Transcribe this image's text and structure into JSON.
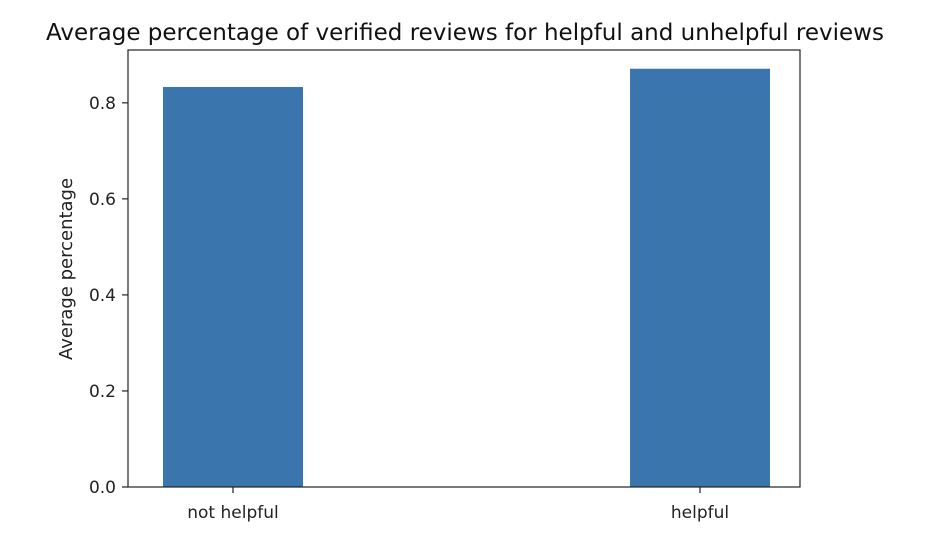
{
  "chart_data": {
    "type": "bar",
    "title": "Average percentage of verified reviews for helpful and unhelpful reviews",
    "xlabel": "",
    "ylabel": "Average percentage",
    "categories": [
      "not helpful",
      "helpful"
    ],
    "values": [
      0.833,
      0.871
    ],
    "ylim": [
      0,
      0.91
    ],
    "yticks": [
      "0.0",
      "0.2",
      "0.4",
      "0.6",
      "0.8"
    ],
    "grid": false,
    "bar_color": "#3a75ad"
  }
}
